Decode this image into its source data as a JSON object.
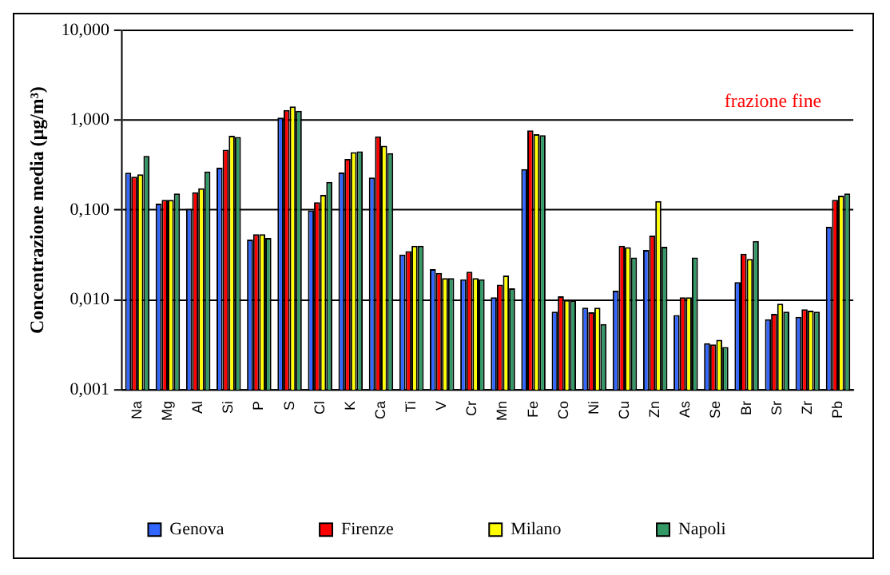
{
  "chart_data": {
    "type": "bar",
    "ylabel": "Concentrazione media (µg/m³)",
    "annotations": [
      "frazione fine"
    ],
    "categories": [
      "Na",
      "Mg",
      "Al",
      "Si",
      "P",
      "S",
      "Cl",
      "K",
      "Ca",
      "Ti",
      "V",
      "Cr",
      "Mn",
      "Fe",
      "Co",
      "Ni",
      "Cu",
      "Zn",
      "As",
      "Se",
      "Br",
      "Sr",
      "Zr",
      "Pb"
    ],
    "series": [
      {
        "name": "Genova",
        "color": "#3366ff",
        "values": [
          0.26,
          0.118,
          0.103,
          0.296,
          0.047,
          1.07,
          0.099,
          0.262,
          0.23,
          0.032,
          0.022,
          0.017,
          0.0107,
          0.286,
          0.0074,
          0.0082,
          0.0127,
          0.036,
          0.0068,
          0.0033,
          0.0158,
          0.0061,
          0.0065,
          0.065
        ]
      },
      {
        "name": "Firenze",
        "color": "#ff0000",
        "values": [
          0.235,
          0.13,
          0.158,
          0.47,
          0.054,
          1.3,
          0.122,
          0.37,
          0.66,
          0.035,
          0.02,
          0.0206,
          0.0148,
          0.77,
          0.011,
          0.0073,
          0.04,
          0.052,
          0.0107,
          0.0032,
          0.0327,
          0.007,
          0.0079,
          0.13
        ]
      },
      {
        "name": "Milano",
        "color": "#ffff00",
        "values": [
          0.25,
          0.13,
          0.175,
          0.67,
          0.054,
          1.42,
          0.148,
          0.44,
          0.52,
          0.04,
          0.0175,
          0.0175,
          0.0187,
          0.7,
          0.01,
          0.0082,
          0.0386,
          0.126,
          0.0107,
          0.0036,
          0.0286,
          0.0091,
          0.0076,
          0.145
        ]
      },
      {
        "name": "Napoli",
        "color": "#339966",
        "values": [
          0.4,
          0.153,
          0.268,
          0.65,
          0.049,
          1.27,
          0.206,
          0.45,
          0.43,
          0.04,
          0.0175,
          0.017,
          0.0135,
          0.68,
          0.0098,
          0.0054,
          0.0296,
          0.039,
          0.0296,
          0.003,
          0.0454,
          0.0074,
          0.0074,
          0.153
        ]
      }
    ],
    "log": true,
    "ylim": [
      0.001,
      10
    ],
    "yticks": [
      {
        "value": 0.001,
        "label": "0,001"
      },
      {
        "value": 0.01,
        "label": "0,010"
      },
      {
        "value": 0.1,
        "label": "0,100"
      },
      {
        "value": 1,
        "label": "1,000"
      },
      {
        "value": 10,
        "label": "10,000"
      }
    ],
    "grid": "y",
    "legend": "bottom"
  }
}
